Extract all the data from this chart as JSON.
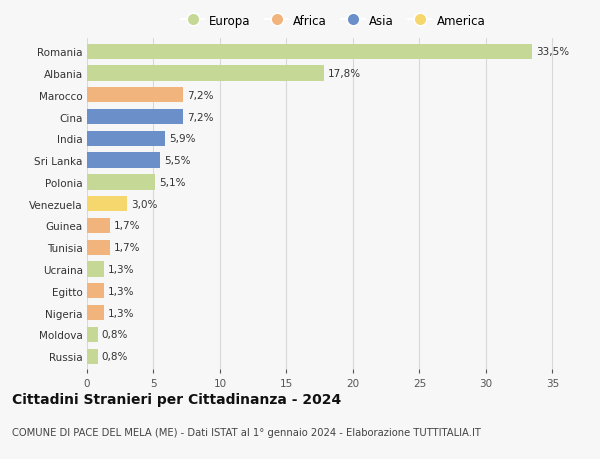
{
  "countries": [
    "Romania",
    "Albania",
    "Marocco",
    "Cina",
    "India",
    "Sri Lanka",
    "Polonia",
    "Venezuela",
    "Guinea",
    "Tunisia",
    "Ucraina",
    "Egitto",
    "Nigeria",
    "Moldova",
    "Russia"
  ],
  "values": [
    33.5,
    17.8,
    7.2,
    7.2,
    5.9,
    5.5,
    5.1,
    3.0,
    1.7,
    1.7,
    1.3,
    1.3,
    1.3,
    0.8,
    0.8
  ],
  "labels": [
    "33,5%",
    "17,8%",
    "7,2%",
    "7,2%",
    "5,9%",
    "5,5%",
    "5,1%",
    "3,0%",
    "1,7%",
    "1,7%",
    "1,3%",
    "1,3%",
    "1,3%",
    "0,8%",
    "0,8%"
  ],
  "continents": [
    "Europa",
    "Europa",
    "Africa",
    "Asia",
    "Asia",
    "Asia",
    "Europa",
    "America",
    "Africa",
    "Africa",
    "Europa",
    "Africa",
    "Africa",
    "Europa",
    "Europa"
  ],
  "colors": {
    "Europa": "#c5d896",
    "Africa": "#f0b47c",
    "Asia": "#6b8fc9",
    "America": "#f5d76e"
  },
  "legend_order": [
    "Europa",
    "Africa",
    "Asia",
    "America"
  ],
  "xlim": [
    0,
    37
  ],
  "xticks": [
    0,
    5,
    10,
    15,
    20,
    25,
    30,
    35
  ],
  "title": "Cittadini Stranieri per Cittadinanza - 2024",
  "subtitle": "COMUNE DI PACE DEL MELA (ME) - Dati ISTAT al 1° gennaio 2024 - Elaborazione TUTTITALIA.IT",
  "bg_color": "#f7f7f7",
  "grid_color": "#d8d8d8",
  "bar_height": 0.7,
  "label_fontsize": 7.5,
  "tick_fontsize": 7.5,
  "title_fontsize": 10,
  "subtitle_fontsize": 7.2
}
